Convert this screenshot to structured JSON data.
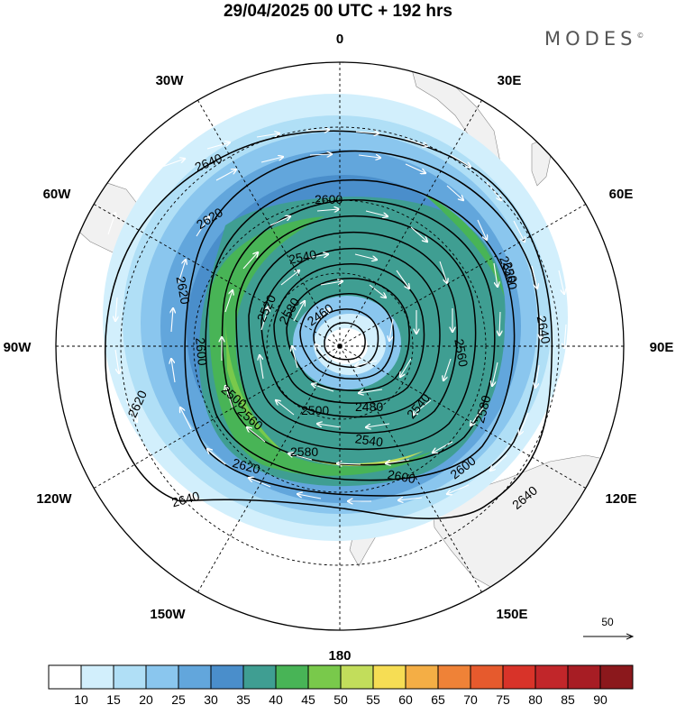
{
  "header": {
    "title": "29/04/2025  00 UTC  + 192 hrs",
    "brand": "MODES",
    "brand_mark": "©"
  },
  "map": {
    "projection": "polar stereographic (south pole)",
    "longitude_labels": [
      {
        "name": "lon-0",
        "text": "0"
      },
      {
        "name": "lon-30e",
        "text": "30E"
      },
      {
        "name": "lon-60e",
        "text": "60E"
      },
      {
        "name": "lon-90e",
        "text": "90E"
      },
      {
        "name": "lon-120e",
        "text": "120E"
      },
      {
        "name": "lon-150e",
        "text": "150E"
      },
      {
        "name": "lon-180",
        "text": "180"
      },
      {
        "name": "lon-150w",
        "text": "150W"
      },
      {
        "name": "lon-120w",
        "text": "120W"
      },
      {
        "name": "lon-90w",
        "text": "90W"
      },
      {
        "name": "lon-60w",
        "text": "60W"
      },
      {
        "name": "lon-30w",
        "text": "30W"
      }
    ],
    "contour_labels": [
      "2640",
      "2620",
      "2600",
      "2540",
      "2620",
      "2620",
      "2520",
      "2460",
      "2580",
      "2600",
      "2640",
      "2500",
      "2480",
      "2560",
      "2540",
      "2580",
      "2560",
      "2500",
      "2580",
      "2540",
      "2620",
      "2600",
      "2640",
      "2620",
      "2640",
      "2600",
      "2560"
    ],
    "reference_vector": {
      "value": "50"
    },
    "colors": {
      "land": "#f1f1f1",
      "ocean": "#ffffff",
      "contour": "#000000",
      "vector": "#ffffff"
    }
  },
  "colorbar": {
    "ticks": [
      "10",
      "15",
      "20",
      "25",
      "30",
      "35",
      "40",
      "45",
      "50",
      "55",
      "60",
      "65",
      "70",
      "75",
      "80",
      "85",
      "90"
    ],
    "colors": [
      "#ffffff",
      "#d2effc",
      "#b0dff6",
      "#8ac6ee",
      "#62a6dc",
      "#4a8ecb",
      "#3f9e92",
      "#48b456",
      "#79c94b",
      "#c2dd5b",
      "#f6dd54",
      "#f4ae45",
      "#ef8237",
      "#e65a2d",
      "#d83329",
      "#c1262a",
      "#a71d24",
      "#8b181c"
    ]
  }
}
